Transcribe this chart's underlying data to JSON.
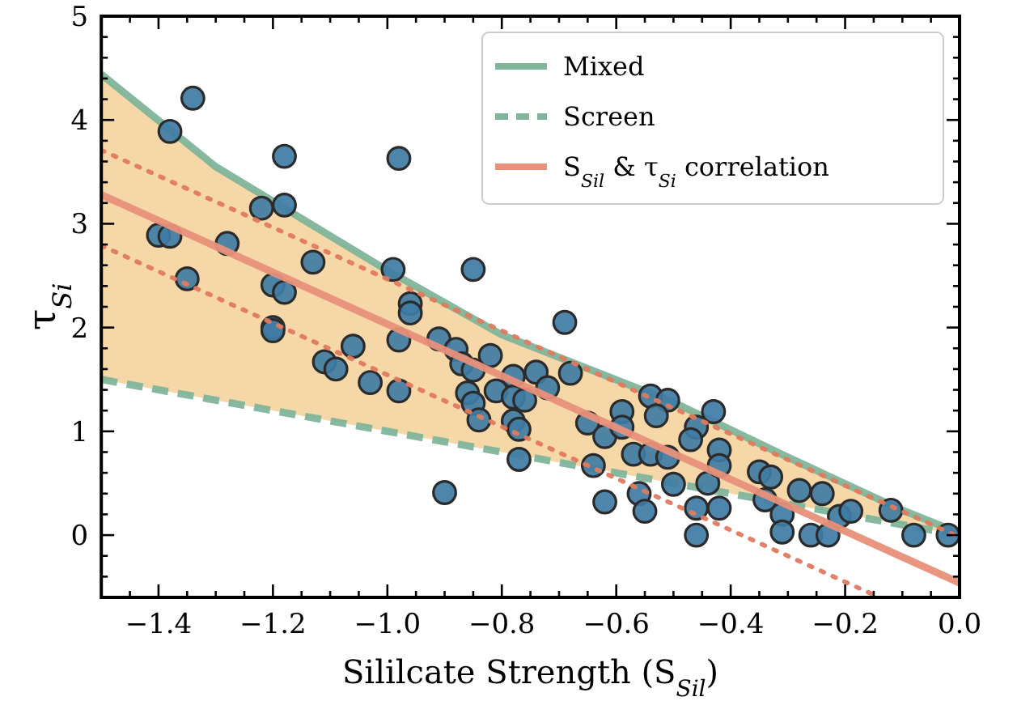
{
  "chart_data": {
    "type": "line",
    "xlabel": "Sililcate Strength (S$_{Sil}$)",
    "ylabel": "τ$_{Si}$",
    "xlim": [
      -1.5,
      0.0
    ],
    "ylim": [
      -0.6,
      5
    ],
    "xticks": [
      {
        "value": -1.4,
        "label": "−1.4"
      },
      {
        "value": -1.2,
        "label": "−1.2"
      },
      {
        "value": -1.0,
        "label": "−1.0"
      },
      {
        "value": -0.8,
        "label": "−0.8"
      },
      {
        "value": -0.6,
        "label": "−0.6"
      },
      {
        "value": -0.4,
        "label": "−0.4"
      },
      {
        "value": -0.2,
        "label": "−0.2"
      },
      {
        "value": 0.0,
        "label": "0.0"
      },
      {
        "value": -1.45,
        "label": null
      },
      {
        "value": -1.35,
        "label": null
      },
      {
        "value": -1.3,
        "label": null
      },
      {
        "value": -1.25,
        "label": null
      },
      {
        "value": -1.15,
        "label": null
      },
      {
        "value": -1.1,
        "label": null
      },
      {
        "value": -1.05,
        "label": null
      },
      {
        "value": -0.95,
        "label": null
      },
      {
        "value": -0.9,
        "label": null
      },
      {
        "value": -0.85,
        "label": null
      },
      {
        "value": -0.75,
        "label": null
      },
      {
        "value": -0.7,
        "label": null
      },
      {
        "value": -0.65,
        "label": null
      },
      {
        "value": -0.55,
        "label": null
      },
      {
        "value": -0.5,
        "label": null
      },
      {
        "value": -0.45,
        "label": null
      },
      {
        "value": -0.35,
        "label": null
      },
      {
        "value": -0.3,
        "label": null
      },
      {
        "value": -0.25,
        "label": null
      },
      {
        "value": -0.15,
        "label": null
      },
      {
        "value": -0.1,
        "label": null
      },
      {
        "value": -0.05,
        "label": null
      }
    ],
    "yticks": [
      0,
      1,
      2,
      3,
      4,
      5,
      {
        "value": -0.4,
        "label": null
      },
      {
        "value": -0.2,
        "label": null
      },
      {
        "value": 0.2,
        "label": null
      },
      {
        "value": 0.4,
        "label": null
      },
      {
        "value": 0.6,
        "label": null
      },
      {
        "value": 0.8,
        "label": null
      },
      {
        "value": 1.2,
        "label": null
      },
      {
        "value": 1.4,
        "label": null
      },
      {
        "value": 1.6,
        "label": null
      },
      {
        "value": 1.8,
        "label": null
      },
      {
        "value": 2.2,
        "label": null
      },
      {
        "value": 2.4,
        "label": null
      },
      {
        "value": 2.6,
        "label": null
      },
      {
        "value": 2.8,
        "label": null
      },
      {
        "value": 3.2,
        "label": null
      },
      {
        "value": 3.4,
        "label": null
      },
      {
        "value": 3.6,
        "label": null
      },
      {
        "value": 3.8,
        "label": null
      },
      {
        "value": 4.2,
        "label": null
      },
      {
        "value": 4.4,
        "label": null
      },
      {
        "value": 4.6,
        "label": null
      },
      {
        "value": 4.8,
        "label": null
      }
    ],
    "legend": "top right",
    "grid": false,
    "series": [
      {
        "name": "Mixed",
        "color": "#7fb59a",
        "line_style": "solid",
        "x": [
          -1.5,
          -1.3,
          -1.0,
          -0.8,
          -0.5,
          -0.3,
          -0.1,
          0.0
        ],
        "values": [
          4.44,
          3.55,
          2.55,
          1.93,
          1.28,
          0.75,
          0.24,
          0.02
        ],
        "lower": [
          1.5,
          1.3,
          1.0,
          0.8,
          0.5,
          0.3,
          0.1,
          0.0
        ],
        "upper": [
          4.44,
          3.55,
          2.55,
          1.93,
          1.28,
          0.75,
          0.24,
          0.02
        ]
      },
      {
        "name": "Screen",
        "color": "#7fb59a",
        "line_style": "dashed",
        "x": [
          -1.5,
          0.0
        ],
        "values": [
          1.5,
          0.0
        ]
      },
      {
        "type": "scatter",
        "color": "#3f7ca4",
        "marker": "circle",
        "x": [
          -1.34,
          -1.38,
          -1.18,
          -0.98,
          -1.22,
          -1.18,
          -1.4,
          -1.38,
          -1.28,
          -1.13,
          -0.99,
          -0.85,
          -1.35,
          -1.2,
          -1.18,
          -0.96,
          -0.96,
          -1.2,
          -1.2,
          -1.06,
          -1.11,
          -1.09,
          -1.03,
          -0.98,
          -0.98,
          -0.91,
          -0.88,
          -0.82,
          -0.87,
          -0.85,
          -0.86,
          -0.85,
          -0.84,
          -0.81,
          -0.78,
          -0.78,
          -0.76,
          -0.74,
          -0.78,
          -0.77,
          -0.77,
          -0.9,
          -0.69,
          -0.68,
          -0.72,
          -0.65,
          -0.62,
          -0.59,
          -0.59,
          -0.54,
          -0.51,
          -0.53,
          -0.57,
          -0.54,
          -0.51,
          -0.5,
          -0.64,
          -0.62,
          -0.56,
          -0.55,
          -0.46,
          -0.46,
          -0.46,
          -0.47,
          -0.43,
          -0.42,
          -0.44,
          -0.42,
          -0.42,
          -0.35,
          -0.33,
          -0.34,
          -0.31,
          -0.31,
          -0.28,
          -0.24,
          -0.26,
          -0.23,
          -0.21,
          -0.19,
          -0.12,
          -0.08,
          -0.02
        ],
        "values": [
          4.21,
          3.89,
          3.65,
          3.63,
          3.15,
          3.18,
          2.89,
          2.88,
          2.81,
          2.63,
          2.56,
          2.56,
          2.47,
          2.41,
          2.34,
          2.23,
          2.14,
          2.0,
          1.97,
          1.82,
          1.67,
          1.6,
          1.47,
          1.88,
          1.39,
          1.89,
          1.79,
          1.73,
          1.65,
          1.59,
          1.37,
          1.27,
          1.11,
          1.39,
          1.53,
          1.33,
          1.3,
          1.57,
          1.1,
          1.02,
          0.73,
          0.41,
          2.05,
          1.56,
          1.42,
          1.08,
          0.95,
          1.19,
          1.04,
          1.34,
          1.3,
          1.15,
          0.78,
          0.78,
          0.75,
          0.49,
          0.67,
          0.32,
          0.4,
          0.23,
          0.26,
          0.0,
          1.04,
          0.92,
          1.19,
          0.82,
          0.5,
          0.26,
          0.67,
          0.61,
          0.56,
          0.34,
          0.2,
          0.03,
          0.43,
          0.4,
          0.0,
          0.0,
          0.18,
          0.23,
          0.24,
          0.0,
          0.0
        ]
      },
      {
        "color": "#e07a5f",
        "line_style": "dotted",
        "x": [
          -1.5,
          0.0
        ],
        "values": [
          3.71,
          -0.02
        ]
      },
      {
        "color": "#e07a5f",
        "line_style": "dotted",
        "x": [
          -1.5,
          -0.14
        ],
        "values": [
          2.79,
          -0.6
        ]
      },
      {
        "name": "S$_{Sil}$ & τ$_{Si}$ correlation",
        "color": "#e8907a",
        "line_style": "solid",
        "x": [
          -1.5,
          0.0
        ],
        "values": [
          3.28,
          -0.46
        ]
      }
    ]
  }
}
